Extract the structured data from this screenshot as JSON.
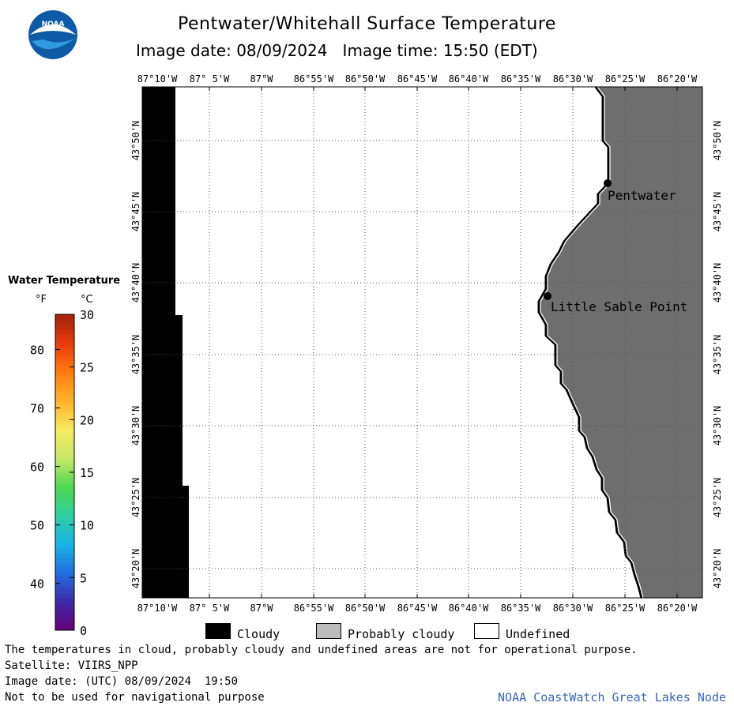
{
  "header": {
    "title": "Pentwater/Whitehall Surface Temperature",
    "image_date_label": "Image date: 08/09/2024",
    "image_time_label": "Image time: 15:50 (EDT)"
  },
  "logo": {
    "text": "NOAA"
  },
  "lon_labels": [
    "87°10'W",
    "87° 5'W",
    "87°W",
    "86°55'W",
    "86°50'W",
    "86°45'W",
    "86°40'W",
    "86°35'W",
    "86°30'W",
    "86°25'W",
    "86°20'W"
  ],
  "lat_labels": [
    "43°50'N",
    "43°45'N",
    "43°40'N",
    "43°35'N",
    "43°30'N",
    "43°25'N",
    "43°20'N"
  ],
  "places": [
    {
      "name": "Pentwater"
    },
    {
      "name": "Little Sable Point"
    }
  ],
  "temperature_legend": {
    "title": "Water Temperature",
    "f_header": "°F",
    "c_header": "°C",
    "fahrenheit_ticks": [
      "80",
      "70",
      "60",
      "50",
      "40"
    ],
    "celsius_ticks": [
      "30",
      "25",
      "20",
      "15",
      "10",
      "5",
      "0"
    ],
    "colors": [
      "#66007a",
      "#3d2aa8",
      "#1f6fe0",
      "#19b5e6",
      "#2ecfa0",
      "#4fd84f",
      "#c8e86a",
      "#f7e85e",
      "#ffb12a",
      "#ff7a10",
      "#e63b0a",
      "#a0220a"
    ]
  },
  "cloud_legend": {
    "items": [
      {
        "label": "Cloudy",
        "color": "#000000"
      },
      {
        "label": "Probably cloudy",
        "color": "#bbbbbb"
      },
      {
        "label": "Undefined",
        "color": "#ffffff"
      }
    ]
  },
  "footer": {
    "disclaimer": "The temperatures in cloud, probably cloudy and undefined areas are not for operational purpose.",
    "satellite": "Satellite: VIIRS_NPP",
    "utc_date": "Image date: (UTC) 08/09/2024  19:50",
    "nav_warning": "Not to be used for navigational purpose",
    "credit": "NOAA CoastWatch Great Lakes Node"
  },
  "colors": {
    "land": "#6e6e6e",
    "cloud": "#000000",
    "shoreline": "#000000",
    "grid": "#555555"
  }
}
